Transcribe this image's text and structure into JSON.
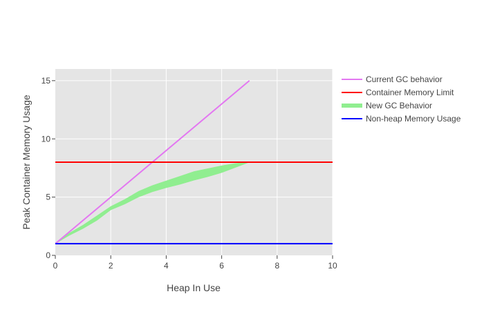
{
  "chart_data": {
    "type": "line",
    "title": "",
    "xlabel": "Heap In Use",
    "ylabel": "Peak Container Memory Usage",
    "xlim": [
      0,
      10
    ],
    "ylim": [
      0,
      16
    ],
    "x_ticks": [
      0,
      2,
      4,
      6,
      8,
      10
    ],
    "y_ticks": [
      0,
      5,
      10,
      15
    ],
    "grid": true,
    "legend_position": "right",
    "series": [
      {
        "name": "Current GC behavior",
        "kind": "line",
        "color": "#e377f1",
        "x": [
          0,
          7
        ],
        "y": [
          1,
          15
        ]
      },
      {
        "name": "Container Memory Limit",
        "kind": "hline",
        "color": "#ff0000",
        "x": [
          0,
          10
        ],
        "y": [
          8,
          8
        ]
      },
      {
        "name": "New GC Behavior",
        "kind": "band",
        "color": "#90ee90",
        "x": [
          0,
          0.5,
          1,
          1.5,
          2,
          2.5,
          3,
          3.5,
          4,
          4.5,
          5,
          5.5,
          6,
          6.5,
          7
        ],
        "upper": [
          1,
          1.9,
          2.6,
          3.4,
          4.2,
          4.8,
          5.5,
          6.0,
          6.4,
          6.8,
          7.2,
          7.45,
          7.7,
          7.9,
          8.0
        ],
        "lower": [
          1,
          1.7,
          2.3,
          3.0,
          3.9,
          4.4,
          5.0,
          5.45,
          5.8,
          6.1,
          6.45,
          6.75,
          7.1,
          7.55,
          8.0
        ]
      },
      {
        "name": "Non-heap Memory Usage",
        "kind": "hline",
        "color": "#0000ff",
        "x": [
          0,
          10
        ],
        "y": [
          1,
          1
        ]
      }
    ]
  }
}
